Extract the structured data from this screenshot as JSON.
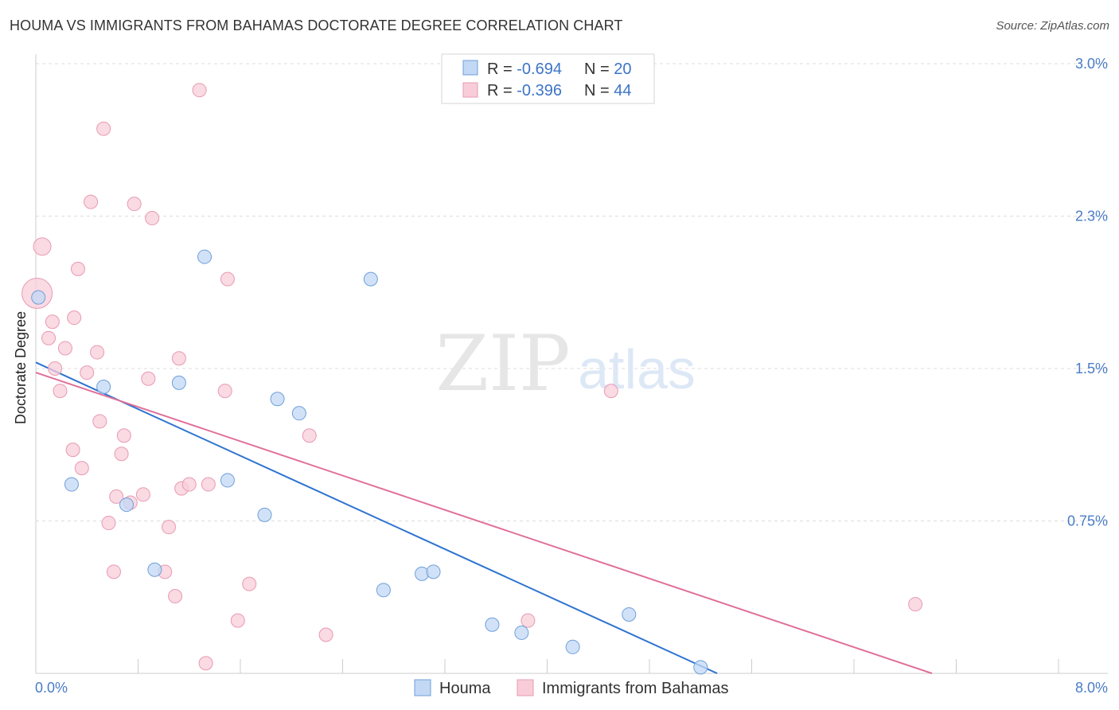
{
  "header": {
    "title": "HOUMA VS IMMIGRANTS FROM BAHAMAS DOCTORATE DEGREE CORRELATION CHART",
    "source": "Source: ZipAtlas.com"
  },
  "watermark": {
    "zip": "ZIP",
    "atlas": "atlas"
  },
  "colors": {
    "houma_fill": "#c2d8f5",
    "houma_stroke": "#6f9fd8",
    "houma_line": "#2f74d0",
    "bahamas_fill": "#f8cdd9",
    "bahamas_stroke": "#e89ab3",
    "bahamas_line": "#e0709a",
    "tick_text": "#4a7cc7",
    "grid": "#dddddd"
  },
  "stats_legend": [
    {
      "r_label": "R = ",
      "r_value": "-0.694",
      "n_label": "N = ",
      "n_value": "20"
    },
    {
      "r_label": "R = ",
      "r_value": "-0.396",
      "n_label": "N = ",
      "n_value": "44"
    }
  ],
  "bottom_legend": [
    "Houma",
    "Immigrants from Bahamas"
  ],
  "chart_data": {
    "type": "scatter",
    "ylabel": "Doctorate Degree",
    "xlim": [
      0,
      8.0
    ],
    "ylim": [
      0,
      3.0
    ],
    "x_tick_labels": [
      {
        "value": 0,
        "label": "0.0%"
      },
      {
        "value": 8.0,
        "label": "8.0%"
      }
    ],
    "y_tick_labels": [
      {
        "value": 0.75,
        "label": "0.75%"
      },
      {
        "value": 1.5,
        "label": "1.5%"
      },
      {
        "value": 2.25,
        "label": "2.3%"
      },
      {
        "value": 3.0,
        "label": "3.0%"
      }
    ],
    "grid": true,
    "legend_position": "top-center",
    "series": [
      {
        "name": "Houma",
        "r": -0.694,
        "n": 20,
        "points": [
          [
            0.02,
            1.85
          ],
          [
            0.28,
            0.93
          ],
          [
            0.53,
            1.41
          ],
          [
            0.71,
            0.83
          ],
          [
            0.93,
            0.51
          ],
          [
            1.12,
            1.43
          ],
          [
            1.32,
            2.05
          ],
          [
            1.5,
            0.95
          ],
          [
            1.79,
            0.78
          ],
          [
            1.89,
            1.35
          ],
          [
            2.06,
            1.28
          ],
          [
            2.62,
            1.94
          ],
          [
            2.72,
            0.41
          ],
          [
            3.02,
            0.49
          ],
          [
            3.11,
            0.5
          ],
          [
            3.57,
            0.24
          ],
          [
            3.8,
            0.2
          ],
          [
            4.2,
            0.13
          ],
          [
            4.64,
            0.29
          ],
          [
            5.2,
            0.03
          ]
        ],
        "trend": [
          [
            0,
            1.53
          ],
          [
            5.33,
            0.0
          ]
        ]
      },
      {
        "name": "Immigrants from Bahamas",
        "r": -0.396,
        "n": 44,
        "points": [
          [
            0.01,
            1.87
          ],
          [
            0.05,
            2.1
          ],
          [
            0.1,
            1.65
          ],
          [
            0.13,
            1.73
          ],
          [
            0.15,
            1.5
          ],
          [
            0.19,
            1.39
          ],
          [
            0.23,
            1.6
          ],
          [
            0.3,
            1.75
          ],
          [
            0.29,
            1.1
          ],
          [
            0.33,
            1.99
          ],
          [
            0.36,
            1.01
          ],
          [
            0.4,
            1.48
          ],
          [
            0.43,
            2.32
          ],
          [
            0.48,
            1.58
          ],
          [
            0.5,
            1.24
          ],
          [
            0.53,
            2.68
          ],
          [
            0.57,
            0.74
          ],
          [
            0.61,
            0.5
          ],
          [
            0.63,
            0.87
          ],
          [
            0.67,
            1.08
          ],
          [
            0.69,
            1.17
          ],
          [
            0.74,
            0.84
          ],
          [
            0.77,
            2.31
          ],
          [
            0.84,
            0.88
          ],
          [
            0.88,
            1.45
          ],
          [
            0.91,
            2.24
          ],
          [
            1.01,
            0.5
          ],
          [
            1.04,
            0.72
          ],
          [
            1.09,
            0.38
          ],
          [
            1.12,
            1.55
          ],
          [
            1.14,
            0.91
          ],
          [
            1.2,
            0.93
          ],
          [
            1.28,
            2.87
          ],
          [
            1.33,
            0.05
          ],
          [
            1.35,
            0.93
          ],
          [
            1.48,
            1.39
          ],
          [
            1.5,
            1.94
          ],
          [
            1.58,
            0.26
          ],
          [
            1.67,
            0.44
          ],
          [
            2.14,
            1.17
          ],
          [
            2.27,
            0.19
          ],
          [
            3.85,
            0.26
          ],
          [
            4.5,
            1.39
          ],
          [
            6.88,
            0.34
          ]
        ],
        "trend": [
          [
            0,
            1.48
          ],
          [
            7.01,
            0.0
          ]
        ]
      }
    ]
  }
}
